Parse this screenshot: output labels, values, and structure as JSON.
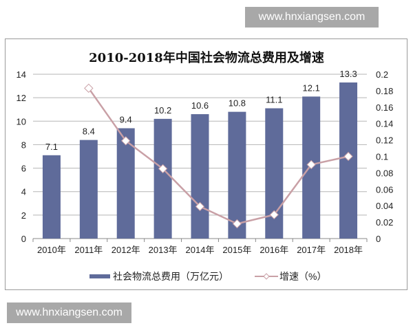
{
  "watermark": {
    "top": "www.hnxiangsen.com",
    "bottom": "www.hnxiangsen.com"
  },
  "colors": {
    "bar": "#5f6b9a",
    "line": "#c9a0a6",
    "grid": "#b5b5b5",
    "border": "#9a9a9a"
  },
  "legend": {
    "bar_label": "社会物流总费用（万亿元）",
    "line_label": "增速（%）"
  },
  "chart_data": {
    "type": "bar",
    "title": "2010-2018年中国社会物流总费用及增速",
    "categories": [
      "2010年",
      "2011年",
      "2012年",
      "2013年",
      "2014年",
      "2015年",
      "2016年",
      "2017年",
      "2018年"
    ],
    "series": [
      {
        "name": "社会物流总费用（万亿元）",
        "type": "bar",
        "axis": "left",
        "values": [
          7.1,
          8.4,
          9.4,
          10.2,
          10.6,
          10.8,
          11.1,
          12.1,
          13.3
        ]
      },
      {
        "name": "增速（%）",
        "type": "line",
        "axis": "right",
        "values": [
          null,
          0.183,
          0.119,
          0.085,
          0.039,
          0.018,
          0.029,
          0.09,
          0.1
        ]
      }
    ],
    "left_axis": {
      "ylim": [
        0,
        14
      ],
      "ticks": [
        "0",
        "2",
        "4",
        "6",
        "8",
        "10",
        "12",
        "14"
      ]
    },
    "right_axis": {
      "ylim": [
        0,
        0.2
      ],
      "ticks": [
        "0",
        "0.02",
        "0.04",
        "0.06",
        "0.08",
        "0.1",
        "0.12",
        "0.14",
        "0.16",
        "0.18",
        "0.2"
      ]
    },
    "xlabel": "",
    "ylabel": "",
    "grid": true,
    "legend_position": "bottom",
    "data_labels": [
      "7.1",
      "8.4",
      "9.4",
      "10.2",
      "10.6",
      "10.8",
      "11.1",
      "12.1",
      "13.3"
    ]
  }
}
